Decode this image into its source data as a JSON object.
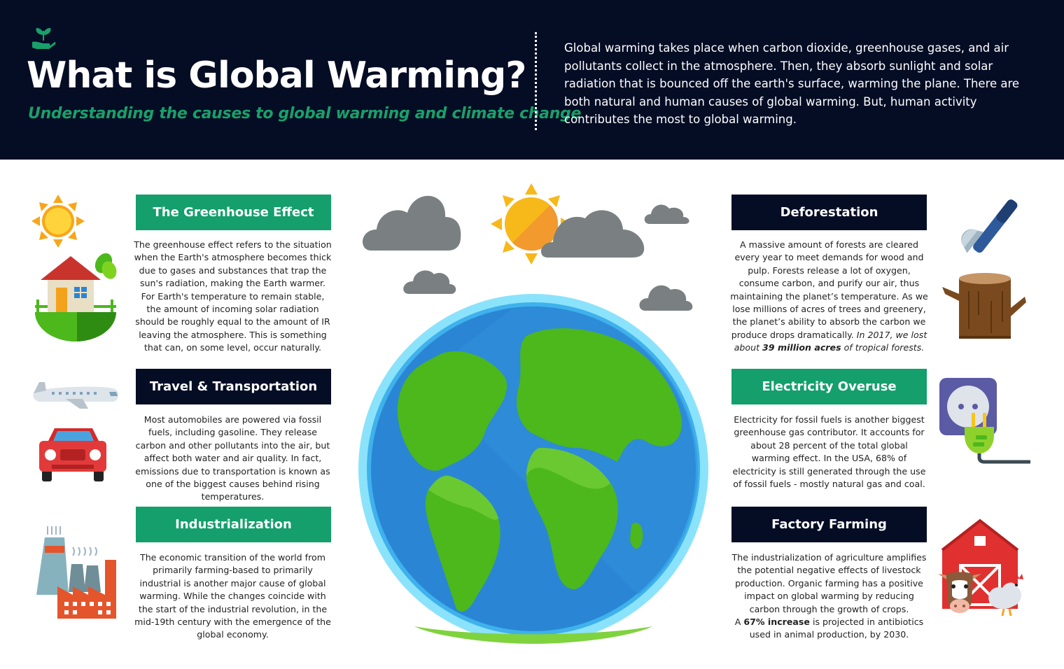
{
  "header": {
    "logo_icon": "sprout-in-hand-icon",
    "title": "What is Global Warming?",
    "subtitle": "Understanding the causes to global warming and climate change",
    "intro": "Global warming takes place when carbon dioxide, greenhouse gases, and air pollutants collect in the atmosphere. Then, they absorb sunlight and solar radiation that is bounced off the earth's surface, warming the plane. There are both natural and human causes of global warming. But, human activity contributes the most to global warming."
  },
  "colors": {
    "navy": "#050d25",
    "green": "#149f6c",
    "ocean": "#2a86d4",
    "land": "#4cb81c",
    "cloud": "#7a7f82",
    "sun": "#f7b81a"
  },
  "sections": {
    "greenhouse": {
      "icon": "sun-and-house-icon",
      "heading": "The Greenhouse Effect",
      "body": "The greenhouse effect refers to the situation when the Earth's atmosphere becomes thick due to gases and substances that trap the sun's radiation, making the Earth warmer. For Earth's temperature to remain stable, the amount of incoming solar radiation should be roughly equal to the amount of IR leaving the atmosphere. This is something that can, on some level, occur naturally."
    },
    "travel": {
      "icon": "airplane-and-car-icon",
      "heading": "Travel & Transportation",
      "body": "Most automobiles are powered via fossil fuels, including gasoline. They release carbon and other pollutants into the air, but affect both water and air quality. In fact, emissions due to transportation is known as one of the biggest causes behind rising temperatures."
    },
    "industrialization": {
      "icon": "factory-icon",
      "heading": "Industrialization",
      "body": "The economic transition of the world from primarily farming-based to primarily industrial is another major cause of global warming. While the changes coincide with the start of the industrial revolution, in the mid-19th century with the emergence of the global economy."
    },
    "deforestation": {
      "icon": "axe-and-stump-icon",
      "heading": "Deforestation",
      "body_plain": "A massive amount of forests are cleared every year to meet demands for wood and pulp. Forests release a lot of oxygen, consume carbon, and purify our air, thus maintaining the planet’s temperature. As we lose millions of acres of trees and greenery, the planet’s ability to absorb the carbon we produce drops dramatically. ",
      "body_em_1": "In 2017, we lost about ",
      "body_strong": "39 million acres",
      "body_em_2": " of tropical forests."
    },
    "electricity": {
      "icon": "plug-and-socket-icon",
      "heading": "Electricity Overuse",
      "body": "Electricity for fossil fuels is another biggest greenhouse gas contributor. It accounts for about 28 percent of the total global warming effect. In the USA, 68% of electricity is still generated through the use of fossil fuels - mostly natural gas and coal."
    },
    "farming": {
      "icon": "barn-and-animals-icon",
      "heading": "Factory Farming",
      "body_1": "The industrialization of agriculture amplifies the potential negative effects of livestock production. Organic farming has a positive impact on global warming by reducing carbon through the growth of crops.",
      "body_2a": "A ",
      "body_strong": "67% increase",
      "body_2b": " is projected in antibiotics used in animal production, by 2030."
    }
  },
  "center": {
    "icon": "earth-with-sun-and-clouds-icon"
  }
}
